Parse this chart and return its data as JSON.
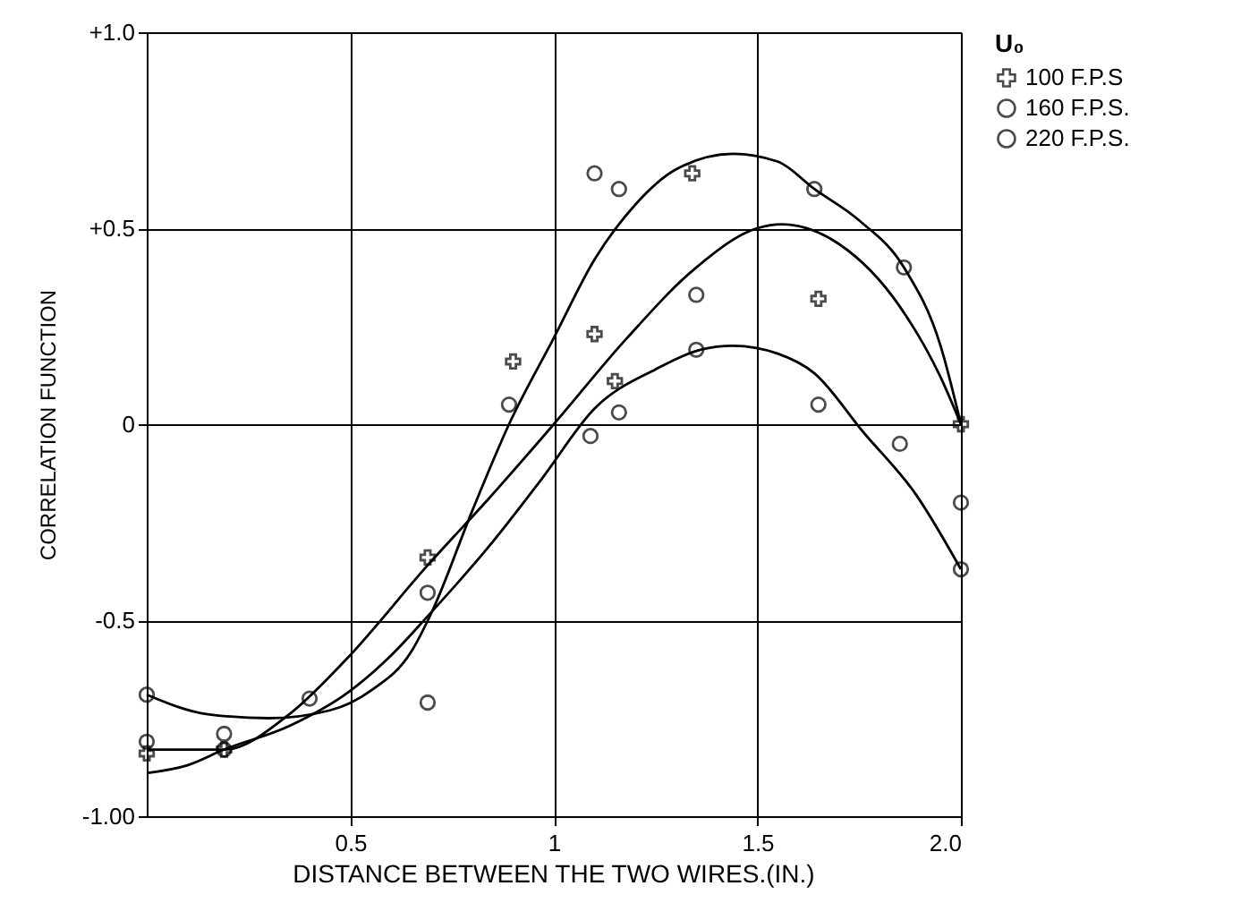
{
  "chart_data": {
    "type": "scatter",
    "xlabel": "DISTANCE   BETWEEN   THE   TWO   WIRES.(IN.)",
    "ylabel": "CORRELATION  FUNCTION",
    "legend_title": "U₀",
    "legend": "right",
    "grid": true,
    "xlim": [
      0,
      2
    ],
    "ylim": [
      -1,
      1
    ],
    "xticks": [
      0.5,
      1,
      1.5,
      {
        "value": 2,
        "label": "2.0"
      }
    ],
    "yticks": [
      {
        "value": -1,
        "label": "-1.00"
      },
      -0.5,
      0,
      {
        "value": 0.5,
        "label": "+0.5"
      },
      {
        "value": 1,
        "label": "+1.0"
      }
    ],
    "series": [
      {
        "name": "100 F.P.S",
        "type": "scatter",
        "marker": "cross",
        "color": "#000000",
        "x": [
          0,
          0.19,
          0.69,
          0.9,
          1.1,
          1.15,
          1.34,
          1.65,
          2.0
        ],
        "values": [
          -0.84,
          -0.83,
          -0.34,
          0.16,
          0.23,
          0.11,
          0.64,
          0.32,
          0.0
        ]
      },
      {
        "name": "160 F.P.S.",
        "type": "scatter",
        "marker": "circle",
        "color": "#000000",
        "x": [
          0,
          0,
          0.19,
          0.69,
          0.89,
          1.09,
          1.16,
          1.35,
          1.65,
          1.85,
          2.0
        ],
        "values": [
          -0.69,
          -0.81,
          -0.83,
          -0.43,
          0.05,
          -0.03,
          0.03,
          0.19,
          0.05,
          -0.05,
          -0.37
        ]
      },
      {
        "name": "220 F.P.S.",
        "type": "scatter",
        "marker": "circle",
        "color": "#000000",
        "x": [
          0.19,
          0.4,
          0.69,
          1.1,
          1.16,
          1.35,
          1.64,
          1.86,
          2.0
        ],
        "values": [
          -0.79,
          -0.7,
          -0.71,
          0.64,
          0.6,
          0.33,
          0.6,
          0.4,
          -0.2
        ]
      },
      {
        "type": "line",
        "color": "#000000",
        "x": [
          0,
          0.15,
          0.3,
          0.45,
          0.55,
          0.65,
          0.7,
          0.8,
          0.89,
          1.0,
          1.1,
          1.2,
          1.3,
          1.44,
          1.55,
          1.64,
          1.75,
          1.86,
          1.95,
          2.0
        ],
        "values": [
          -0.69,
          -0.74,
          -0.75,
          -0.73,
          -0.68,
          -0.58,
          -0.48,
          -0.22,
          0.0,
          0.22,
          0.42,
          0.56,
          0.65,
          0.69,
          0.67,
          0.6,
          0.52,
          0.4,
          0.2,
          0.0
        ]
      },
      {
        "type": "line",
        "color": "#000000",
        "x": [
          0,
          0.19,
          0.35,
          0.49,
          0.69,
          0.84,
          1.0,
          1.18,
          1.35,
          1.5,
          1.56,
          1.7,
          1.85,
          1.95,
          2.0
        ],
        "values": [
          -0.83,
          -0.83,
          -0.74,
          -0.6,
          -0.36,
          -0.19,
          0.0,
          0.22,
          0.4,
          0.5,
          0.51,
          0.46,
          0.3,
          0.12,
          0.0
        ]
      },
      {
        "type": "line",
        "color": "#000000",
        "x": [
          0,
          0.1,
          0.19,
          0.35,
          0.5,
          0.6,
          0.69,
          0.85,
          0.97,
          1.1,
          1.25,
          1.36,
          1.44,
          1.55,
          1.64,
          1.76,
          1.89,
          2.0
        ],
        "values": [
          -0.89,
          -0.87,
          -0.83,
          -0.77,
          -0.68,
          -0.59,
          -0.49,
          -0.3,
          -0.14,
          0.04,
          0.14,
          0.19,
          0.2,
          0.18,
          0.13,
          -0.02,
          -0.18,
          -0.37
        ]
      }
    ]
  }
}
